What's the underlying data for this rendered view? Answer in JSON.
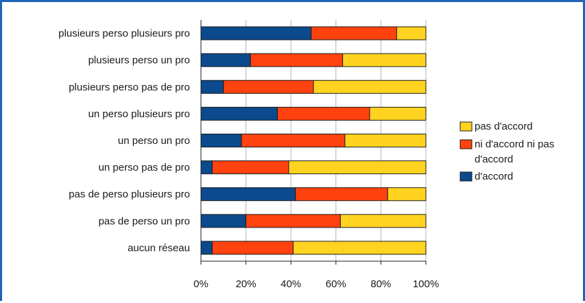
{
  "chart_data": {
    "type": "bar",
    "orientation": "horizontal",
    "stacked": true,
    "normalized": true,
    "categories": [
      "plusieurs perso plusieurs pro",
      "plusieurs perso un pro",
      "plusieurs perso pas de pro",
      "un perso plusieurs pro",
      "un perso un pro",
      "un perso pas de pro",
      "pas de perso plusieurs pro",
      "pas de perso un pro",
      "aucun réseau"
    ],
    "series": [
      {
        "name": "d'accord",
        "color": "#0b4a8c",
        "values": [
          49,
          22,
          10,
          34,
          18,
          5,
          42,
          20,
          5
        ]
      },
      {
        "name": "ni d'accord ni pas d'accord",
        "color": "#ff420e",
        "values": [
          38,
          41,
          40,
          41,
          46,
          34,
          41,
          42,
          36
        ]
      },
      {
        "name": "pas d'accord",
        "color": "#ffd320",
        "values": [
          13,
          37,
          50,
          25,
          36,
          61,
          17,
          38,
          59
        ]
      }
    ],
    "xlim": [
      0,
      100
    ],
    "xticks": [
      "0%",
      "20%",
      "40%",
      "60%",
      "80%",
      "100%"
    ],
    "legend": {
      "position": "right",
      "entries": [
        {
          "label": "pas d'accord",
          "color": "#ffd320"
        },
        {
          "label_lines": [
            "ni d'accord ni pas",
            "d'accord"
          ],
          "color": "#ff420e"
        },
        {
          "label": "d'accord",
          "color": "#0b4a8c"
        }
      ]
    },
    "grid": true
  }
}
